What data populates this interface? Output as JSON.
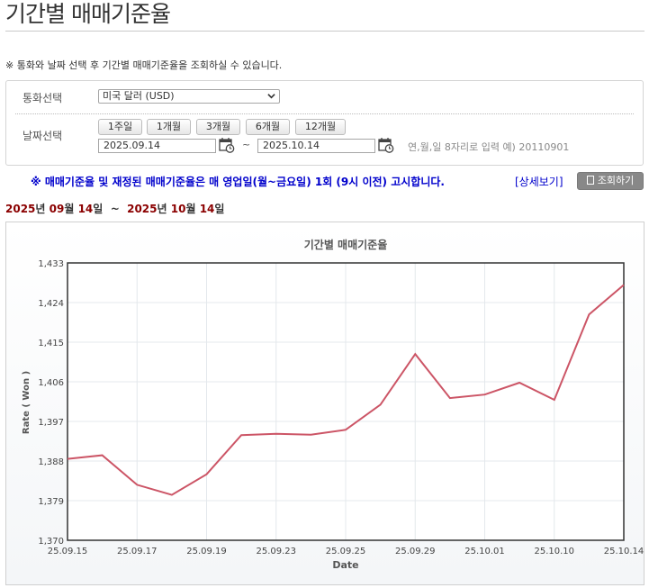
{
  "page": {
    "title": "기간별 매매기준율"
  },
  "notice": "※ 통화와 날짜 선택 후 기간별 매매기준율을 조회하실 수 있습니다.",
  "form": {
    "currency_label": "통화선택",
    "currency_value": "미국 달러 (USD)",
    "date_label": "날짜선택",
    "period_buttons": [
      "1주일",
      "1개월",
      "3개월",
      "6개월",
      "12개월"
    ],
    "start_date": "2025.09.14",
    "end_date": "2025.10.14",
    "tilde": "~",
    "hint": "연,월,일 8자리로 입력 예) 20110901"
  },
  "announcement": "※ 매매기준율 및 재정된 매매기준율은 매 영업일(월~금요일) 1회 (9시 이전) 고시합니다.",
  "detail_link": "[상세보기]",
  "search_button": "조회하기",
  "range": {
    "y1": "2025",
    "l1": "년",
    "m1": "09",
    "l2": "월",
    "d1": "14",
    "l3": "일",
    "tilde": "~",
    "y2": "2025",
    "l4": "년",
    "m2": "10",
    "l5": "월",
    "d2": "14",
    "l6": "일"
  },
  "colors": {
    "line": "#cc5566",
    "announce": "#0000cc",
    "range_highlight": "#8b0000"
  },
  "chart_data": {
    "type": "line",
    "title": "기간별 매매기준율",
    "xlabel": "Date",
    "ylabel": "Rate ( Won )",
    "ylim": [
      1370,
      1433
    ],
    "yticks": [
      1370,
      1379,
      1388,
      1397,
      1406,
      1415,
      1424,
      1433
    ],
    "ytick_labels": [
      "1,370",
      "1,379",
      "1,388",
      "1,397",
      "1,406",
      "1,415",
      "1,424",
      "1,433"
    ],
    "x": [
      "25.09.15",
      "25.09.16",
      "25.09.17",
      "25.09.18",
      "25.09.19",
      "25.09.22",
      "25.09.23",
      "25.09.24",
      "25.09.25",
      "25.09.26",
      "25.09.29",
      "25.09.30",
      "25.10.01",
      "25.10.02",
      "25.10.10",
      "25.10.13",
      "25.10.14"
    ],
    "xtick_labels": [
      "25.09.15",
      "25.09.17",
      "25.09.19",
      "25.09.23",
      "25.09.25",
      "25.09.29",
      "25.10.01",
      "25.10.10",
      "25.10.14"
    ],
    "values": [
      1388.5,
      1389.3,
      1382.6,
      1380.3,
      1385.0,
      1393.9,
      1394.2,
      1394.0,
      1395.1,
      1400.8,
      1412.3,
      1402.3,
      1403.1,
      1405.8,
      1401.9,
      1421.3,
      1428.0
    ],
    "grid": true
  }
}
